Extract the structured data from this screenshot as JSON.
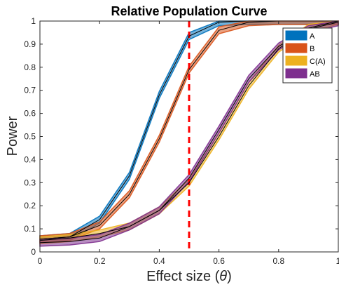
{
  "chart_data": {
    "type": "line",
    "title": "Relative Population Curve",
    "xlabel_text": "Effect size (",
    "xlabel_symbol": "θ",
    "xlabel_close": ")",
    "ylabel": "Power",
    "xlim": [
      0,
      1
    ],
    "ylim": [
      0,
      1
    ],
    "xticks": [
      "0",
      "0.2",
      "0.4",
      "0.6",
      "0.8",
      "1"
    ],
    "yticks": [
      "0",
      "0.1",
      "0.2",
      "0.3",
      "0.4",
      "0.5",
      "0.6",
      "0.7",
      "0.8",
      "0.9",
      "1"
    ],
    "x": [
      0,
      0.1,
      0.2,
      0.3,
      0.4,
      0.5,
      0.6,
      0.7,
      0.8,
      0.9,
      1.0
    ],
    "reference_line": {
      "x": 0.5,
      "color": "#ff0000",
      "style": "dashed"
    },
    "legend_position": "top-right",
    "grid": false,
    "series": [
      {
        "name": "A",
        "color": "#0072bd",
        "values": [
          0.055,
          0.065,
          0.14,
          0.33,
          0.68,
          0.935,
          0.995,
          1.0,
          1.0,
          1.0,
          1.0
        ],
        "band": 0.015
      },
      {
        "name": "B",
        "color": "#d95319",
        "values": [
          0.055,
          0.065,
          0.115,
          0.25,
          0.49,
          0.79,
          0.96,
          0.995,
          1.0,
          1.0,
          1.0
        ],
        "band": 0.015
      },
      {
        "name": "C(A)",
        "color": "#edb120",
        "values": [
          0.05,
          0.06,
          0.08,
          0.11,
          0.18,
          0.3,
          0.5,
          0.72,
          0.88,
          0.97,
          1.0
        ],
        "band": 0.015
      },
      {
        "name": "AB",
        "color": "#7e2f8e",
        "values": [
          0.04,
          0.045,
          0.06,
          0.11,
          0.18,
          0.32,
          0.53,
          0.75,
          0.89,
          0.965,
          0.995
        ],
        "band": 0.015
      }
    ]
  }
}
